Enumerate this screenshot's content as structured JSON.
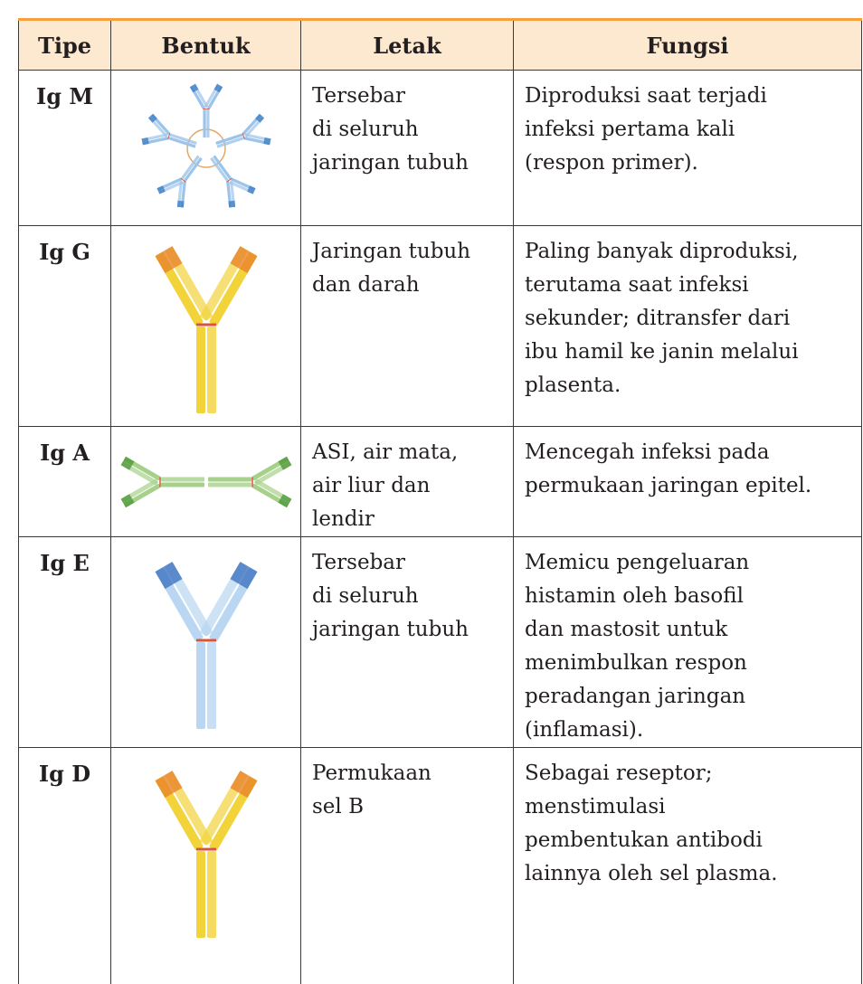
{
  "table": {
    "header": [
      "Tipe",
      "Bentuk",
      "Letak",
      "Fungsi"
    ],
    "rows": [
      {
        "tipe": "Ig M",
        "letak": [
          "Tersebar",
          "di seluruh",
          "jaringan tubuh"
        ],
        "fungsi": [
          "Diproduksi saat terjadi",
          "infeksi pertama kali",
          "(respon primer)."
        ]
      },
      {
        "tipe": "Ig G",
        "letak": [
          "Jaringan tubuh",
          "dan darah"
        ],
        "fungsi": [
          "Paling banyak diproduksi,",
          "terutama saat infeksi",
          "sekunder; ditransfer dari",
          "ibu hamil ke janin melalui",
          "plasenta."
        ]
      },
      {
        "tipe": "Ig A",
        "letak": [
          "ASI, air mata,",
          "air liur dan",
          "lendir"
        ],
        "fungsi": [
          "Mencegah infeksi pada",
          "permukaan jaringan epitel."
        ]
      },
      {
        "tipe": "Ig E",
        "letak": [
          "Tersebar",
          "di seluruh",
          "jaringan tubuh"
        ],
        "fungsi": [
          "Memicu pengeluaran",
          "histamin oleh basofil",
          "dan mastosit untuk",
          "menimbulkan respon",
          "peradangan jaringan",
          "(inflamasi)."
        ]
      },
      {
        "tipe": "Ig D",
        "letak": [
          "Permukaan",
          "sel B"
        ],
        "fungsi": [
          "Sebagai reseptor;",
          "menstimulasi",
          "pembentukan antibodi",
          "lainnya oleh sel plasma."
        ]
      }
    ]
  }
}
